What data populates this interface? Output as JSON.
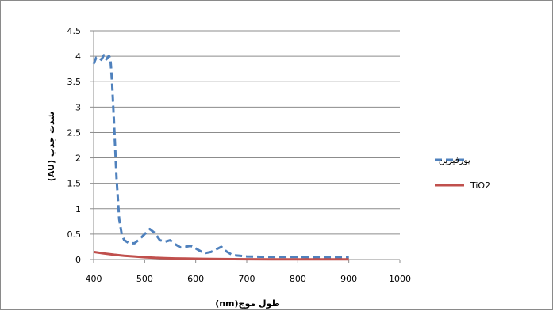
{
  "chart_data": {
    "type": "line",
    "title": "",
    "xlabel": "طول موج(nm)",
    "ylabel": "شدت جذب (AU)",
    "xlim": [
      400,
      1000
    ],
    "ylim": [
      0,
      4.5
    ],
    "x_ticks": [
      "400",
      "500",
      "600",
      "700",
      "800",
      "900",
      "1000"
    ],
    "y_ticks": [
      "0",
      "0.5",
      "1",
      "1.5",
      "2",
      "2.5",
      "3",
      "3.5",
      "4",
      "4.5"
    ],
    "grid": "horizontal",
    "legend_position": "right",
    "series": [
      {
        "name": "پورفیرین",
        "color": "#4f81bd",
        "style": "dashed",
        "x": [
          400,
          405,
          410,
          415,
          420,
          425,
          430,
          433,
          436,
          440,
          445,
          450,
          455,
          460,
          470,
          480,
          490,
          500,
          510,
          520,
          530,
          540,
          550,
          560,
          570,
          580,
          590,
          600,
          610,
          620,
          630,
          640,
          650,
          660,
          670,
          680,
          700,
          750,
          800,
          850,
          900
        ],
        "y": [
          3.85,
          3.97,
          3.98,
          3.93,
          4.02,
          3.94,
          4.01,
          3.95,
          3.5,
          2.7,
          1.6,
          0.8,
          0.5,
          0.38,
          0.32,
          0.32,
          0.4,
          0.5,
          0.6,
          0.52,
          0.38,
          0.35,
          0.38,
          0.3,
          0.24,
          0.25,
          0.27,
          0.22,
          0.16,
          0.13,
          0.15,
          0.2,
          0.25,
          0.16,
          0.1,
          0.08,
          0.06,
          0.05,
          0.05,
          0.04,
          0.04
        ]
      },
      {
        "name": "TiO2",
        "color": "#c0504d",
        "style": "solid",
        "x": [
          400,
          420,
          440,
          460,
          480,
          500,
          520,
          540,
          560,
          580,
          600,
          650,
          700,
          750,
          800,
          850,
          900
        ],
        "y": [
          0.15,
          0.12,
          0.095,
          0.075,
          0.06,
          0.045,
          0.035,
          0.028,
          0.022,
          0.018,
          0.015,
          0.01,
          0.007,
          0.005,
          0.004,
          0.003,
          0.003
        ]
      }
    ]
  }
}
